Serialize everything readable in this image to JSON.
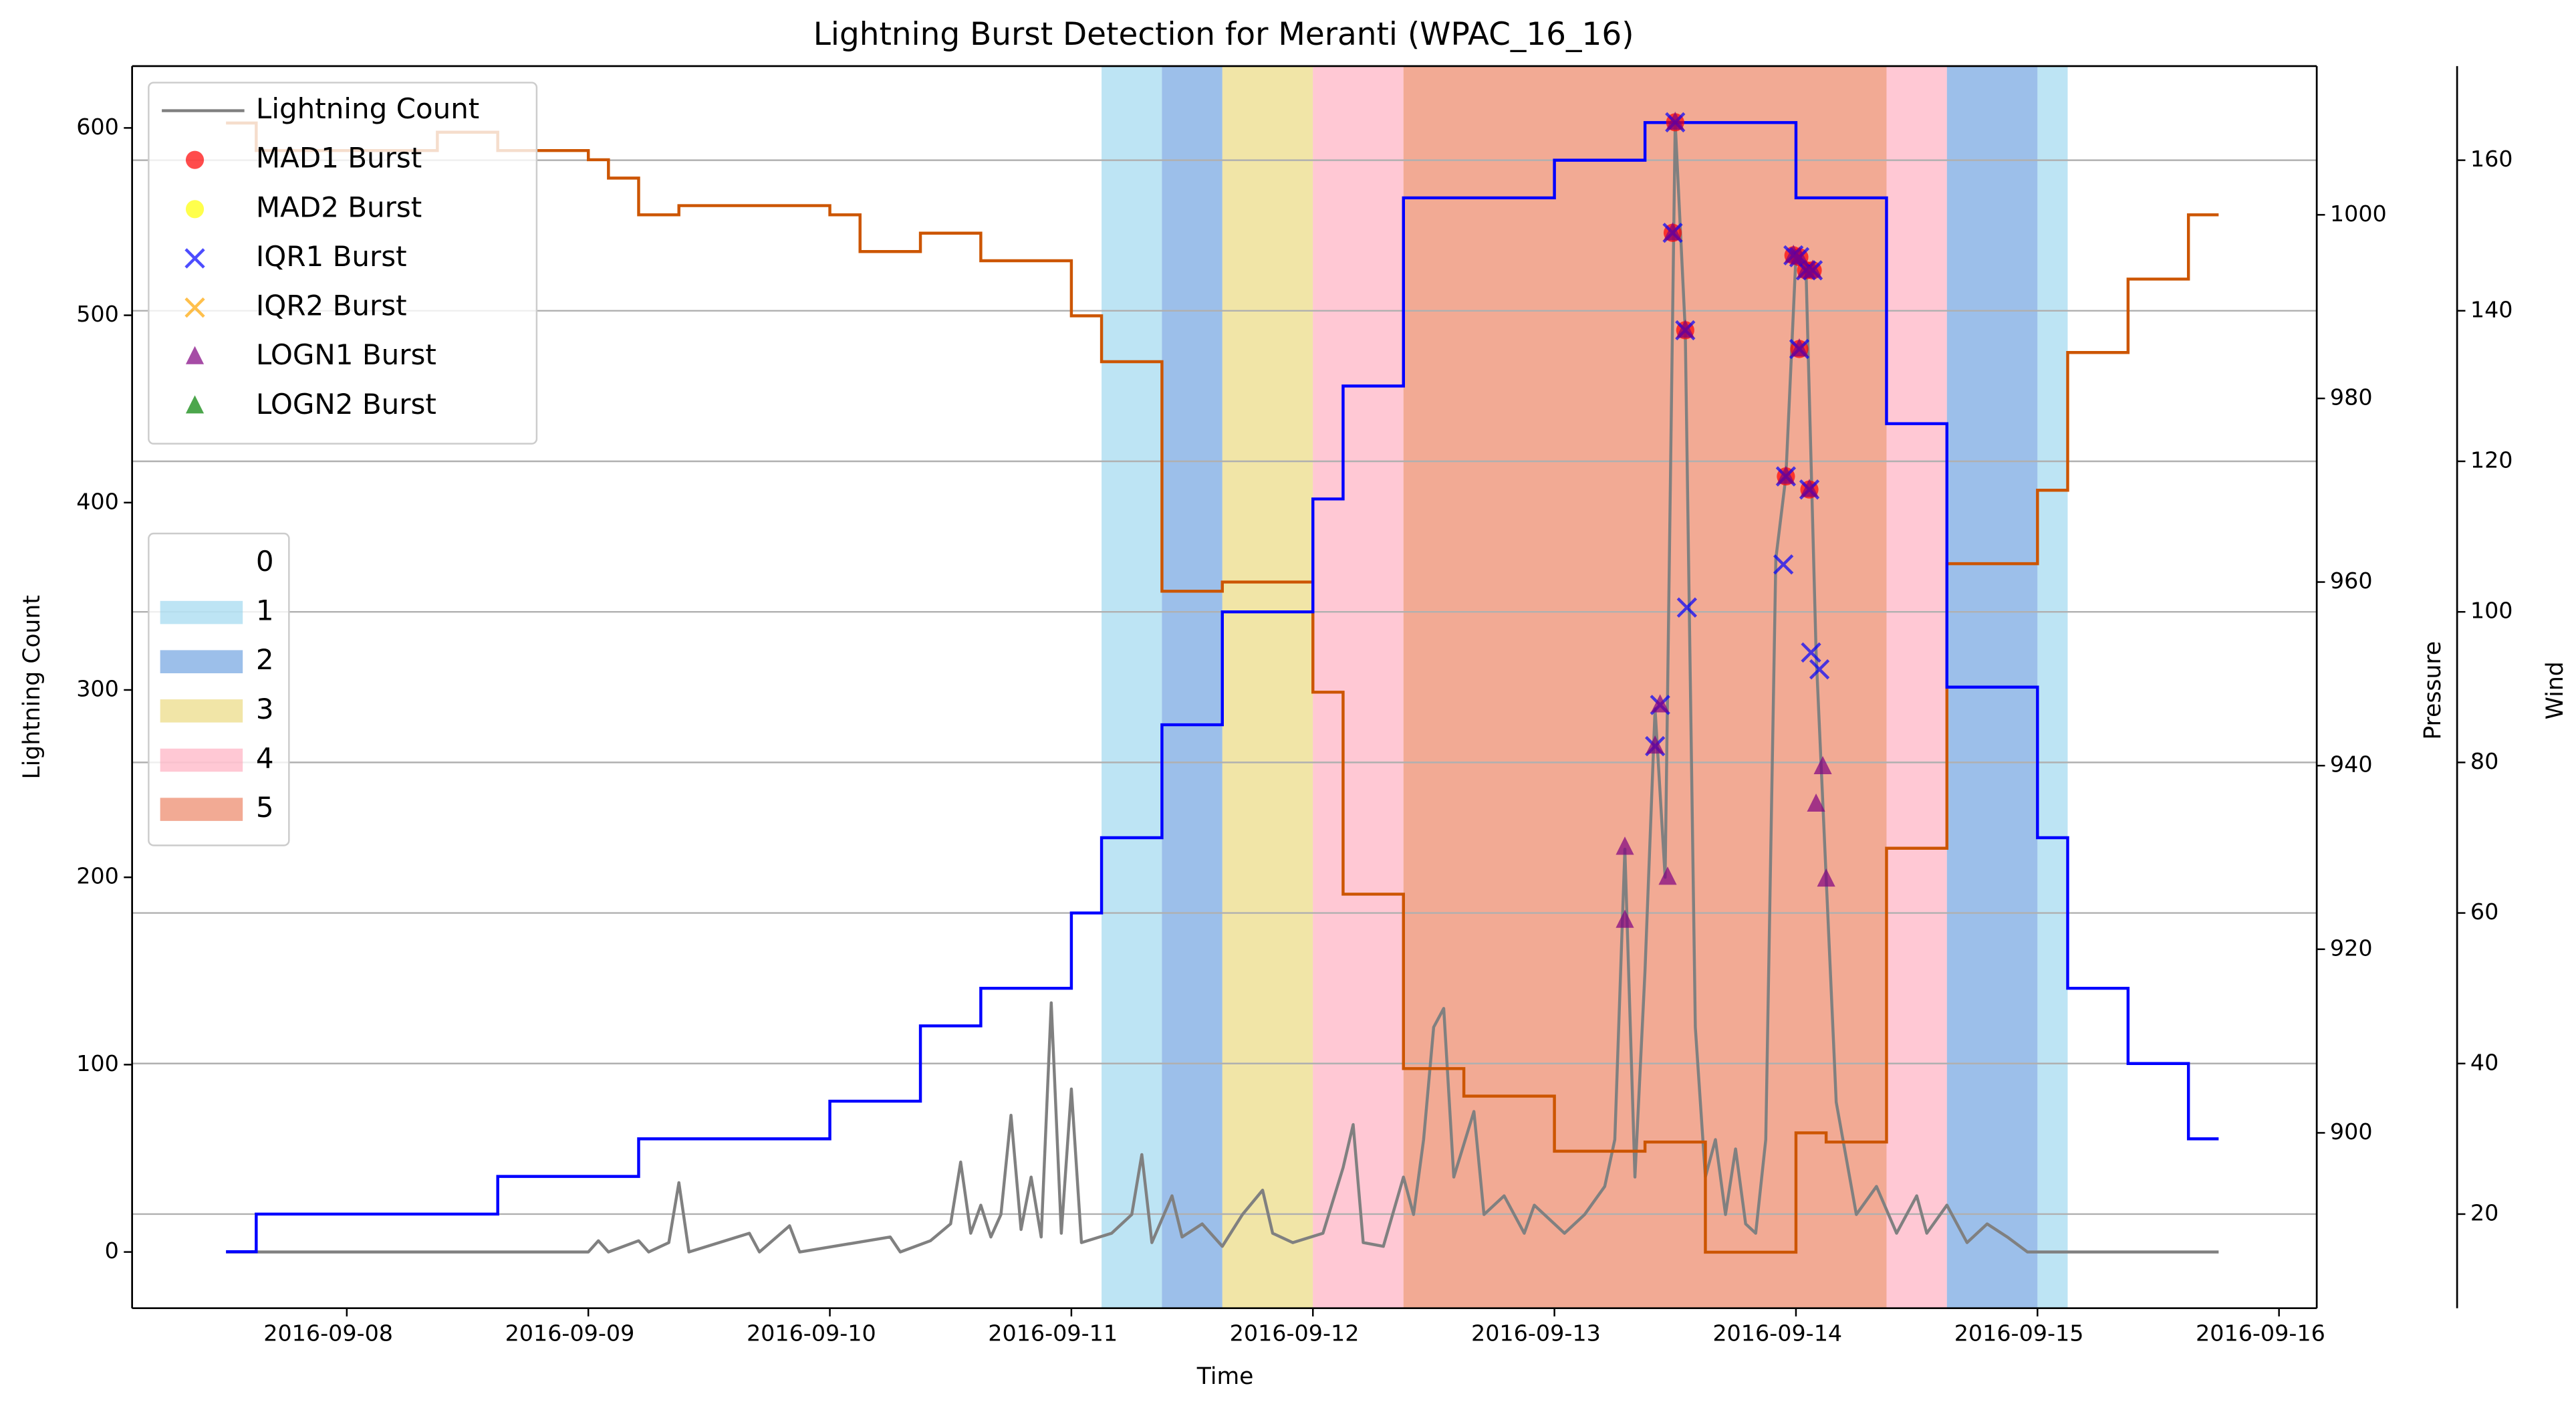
{
  "chart_data": {
    "type": "line",
    "title": "Lightning Burst Detection for Meranti (WPAC_16_16)",
    "xlabel": "Time",
    "ylabel": "Lightning Count",
    "y2label": "Pressure",
    "y3label": "Wind",
    "xlim": [
      "2016-09-07 02:40",
      "2016-09-16 03:45"
    ],
    "xticks": [
      "2016-09-08",
      "2016-09-09",
      "2016-09-10",
      "2016-09-11",
      "2016-09-12",
      "2016-09-13",
      "2016-09-14",
      "2016-09-15",
      "2016-09-16"
    ],
    "ylim": [
      -30,
      633
    ],
    "yticks": [
      0,
      100,
      200,
      300,
      400,
      500,
      600
    ],
    "y2lim": [
      880.9,
      1016.2
    ],
    "y2ticks": [
      900,
      920,
      940,
      960,
      980,
      1000
    ],
    "y3lim": [
      7.5,
      172.5
    ],
    "y3ticks": [
      20,
      40,
      60,
      80,
      100,
      120,
      140,
      160
    ],
    "ycolor": "#808080",
    "y2color": "#CC5500",
    "y3color": "#00008B",
    "grid": "y3",
    "legend": "upper left",
    "bands": [
      {
        "category": 1,
        "start": "2016-09-11 03:00",
        "end": "2016-09-11 09:00"
      },
      {
        "category": 2,
        "start": "2016-09-11 09:00",
        "end": "2016-09-11 15:00"
      },
      {
        "category": 3,
        "start": "2016-09-11 15:00",
        "end": "2016-09-12 00:00"
      },
      {
        "category": 4,
        "start": "2016-09-12 00:00",
        "end": "2016-09-12 09:00"
      },
      {
        "category": 5,
        "start": "2016-09-12 09:00",
        "end": "2016-09-14 09:00"
      },
      {
        "category": 4,
        "start": "2016-09-14 09:00",
        "end": "2016-09-14 15:00"
      },
      {
        "category": 2,
        "start": "2016-09-14 15:00",
        "end": "2016-09-15 00:00"
      },
      {
        "category": 1,
        "start": "2016-09-15 00:00",
        "end": "2016-09-15 03:00"
      }
    ],
    "band_legend": {
      "labels": [
        0,
        1,
        2,
        3,
        4,
        5
      ],
      "colors": [
        null,
        "#87CEEB",
        "#4A8AD8",
        "#E6CF5E",
        "#FF9AB0",
        "#E8643C"
      ]
    },
    "series": [
      {
        "name": "Lightning Count",
        "type": "line",
        "color": "#808080",
        "axis": "y",
        "x": [
          "2016-09-07 12:00",
          "2016-09-09 00:00",
          "2016-09-09 01:00",
          "2016-09-09 02:00",
          "2016-09-09 05:00",
          "2016-09-09 06:00",
          "2016-09-09 08:00",
          "2016-09-09 09:00",
          "2016-09-09 10:00",
          "2016-09-09 16:00",
          "2016-09-09 17:00",
          "2016-09-09 20:00",
          "2016-09-09 21:00",
          "2016-09-10 06:00",
          "2016-09-10 07:00",
          "2016-09-10 10:00",
          "2016-09-10 12:00",
          "2016-09-10 13:00",
          "2016-09-10 14:00",
          "2016-09-10 15:00",
          "2016-09-10 16:00",
          "2016-09-10 17:00",
          "2016-09-10 18:00",
          "2016-09-10 19:00",
          "2016-09-10 20:00",
          "2016-09-10 21:00",
          "2016-09-10 22:00",
          "2016-09-10 23:00",
          "2016-09-11 00:00",
          "2016-09-11 01:00",
          "2016-09-11 04:00",
          "2016-09-11 06:00",
          "2016-09-11 07:00",
          "2016-09-11 08:00",
          "2016-09-11 10:00",
          "2016-09-11 11:00",
          "2016-09-11 13:00",
          "2016-09-11 15:00",
          "2016-09-11 17:00",
          "2016-09-11 19:00",
          "2016-09-11 20:00",
          "2016-09-11 22:00",
          "2016-09-12 01:00",
          "2016-09-12 03:00",
          "2016-09-12 04:00",
          "2016-09-12 05:00",
          "2016-09-12 07:00",
          "2016-09-12 09:00",
          "2016-09-12 10:00",
          "2016-09-12 11:00",
          "2016-09-12 12:00",
          "2016-09-12 13:00",
          "2016-09-12 14:00",
          "2016-09-12 16:00",
          "2016-09-12 17:00",
          "2016-09-12 19:00",
          "2016-09-12 21:00",
          "2016-09-12 22:00",
          "2016-09-13 01:00",
          "2016-09-13 03:00",
          "2016-09-13 05:00",
          "2016-09-13 06:00",
          "2016-09-13 07:00",
          "2016-09-13 08:00",
          "2016-09-13 09:00",
          "2016-09-13 10:00",
          "2016-09-13 11:00",
          "2016-09-13 12:00",
          "2016-09-13 13:00",
          "2016-09-13 14:00",
          "2016-09-13 15:00",
          "2016-09-13 16:00",
          "2016-09-13 17:00",
          "2016-09-13 18:00",
          "2016-09-13 19:00",
          "2016-09-13 20:00",
          "2016-09-13 21:00",
          "2016-09-13 22:00",
          "2016-09-13 23:00",
          "2016-09-14 00:00",
          "2016-09-14 01:00",
          "2016-09-14 02:00",
          "2016-09-14 03:00",
          "2016-09-14 04:00",
          "2016-09-14 05:00",
          "2016-09-14 06:00",
          "2016-09-14 08:00",
          "2016-09-14 10:00",
          "2016-09-14 12:00",
          "2016-09-14 13:00",
          "2016-09-14 15:00",
          "2016-09-14 17:00",
          "2016-09-14 19:00",
          "2016-09-14 21:00",
          "2016-09-14 23:00",
          "2016-09-15 18:00"
        ],
        "values": [
          0,
          0,
          6,
          0,
          6,
          0,
          5,
          37,
          0,
          10,
          0,
          14,
          0,
          8,
          0,
          6,
          15,
          48,
          10,
          25,
          8,
          20,
          73,
          12,
          40,
          8,
          133,
          10,
          87,
          5,
          10,
          20,
          52,
          5,
          30,
          8,
          15,
          3,
          20,
          33,
          10,
          5,
          10,
          45,
          68,
          5,
          3,
          40,
          20,
          60,
          120,
          130,
          40,
          75,
          20,
          30,
          10,
          25,
          10,
          20,
          35,
          60,
          215,
          40,
          150,
          290,
          200,
          603,
          492,
          120,
          40,
          60,
          20,
          55,
          15,
          10,
          60,
          370,
          414,
          532,
          524,
          320,
          200,
          80,
          50,
          20,
          35,
          10,
          30,
          10,
          25,
          5,
          15,
          8,
          0,
          0
        ]
      },
      {
        "type": "step",
        "color": "#CC5500",
        "axis": "y2",
        "x": [
          "2016-09-07 12:00",
          "2016-09-07 15:00",
          "2016-09-08 09:00",
          "2016-09-08 15:00",
          "2016-09-09 00:00",
          "2016-09-09 02:00",
          "2016-09-09 05:00",
          "2016-09-09 09:00",
          "2016-09-10 00:00",
          "2016-09-10 03:00",
          "2016-09-10 09:00",
          "2016-09-10 15:00",
          "2016-09-11 00:00",
          "2016-09-11 03:00",
          "2016-09-11 09:00",
          "2016-09-11 15:00",
          "2016-09-12 00:00",
          "2016-09-12 03:00",
          "2016-09-12 09:00",
          "2016-09-12 15:00",
          "2016-09-13 00:00",
          "2016-09-13 09:00",
          "2016-09-13 15:00",
          "2016-09-14 00:00",
          "2016-09-14 03:00",
          "2016-09-14 09:00",
          "2016-09-14 15:00",
          "2016-09-15 00:00",
          "2016-09-15 03:00",
          "2016-09-15 09:00",
          "2016-09-15 15:00",
          "2016-09-15 18:00"
        ],
        "values": [
          1010,
          1007,
          1009,
          1007,
          1006,
          1004,
          1000,
          1001,
          1000,
          996,
          998,
          995,
          989,
          984,
          959,
          960,
          948,
          926,
          907,
          904,
          898,
          899,
          887,
          900,
          899,
          931,
          962,
          970,
          985,
          993,
          1000,
          1000
        ]
      },
      {
        "type": "step",
        "color": "#0000FF",
        "axis": "y3",
        "x": [
          "2016-09-07 12:00",
          "2016-09-07 15:00",
          "2016-09-08 15:00",
          "2016-09-09 05:00",
          "2016-09-10 00:00",
          "2016-09-10 09:00",
          "2016-09-10 15:00",
          "2016-09-11 00:00",
          "2016-09-11 03:00",
          "2016-09-11 09:00",
          "2016-09-11 15:00",
          "2016-09-12 00:00",
          "2016-09-12 03:00",
          "2016-09-12 09:00",
          "2016-09-13 00:00",
          "2016-09-13 09:00",
          "2016-09-14 00:00",
          "2016-09-14 09:00",
          "2016-09-14 15:00",
          "2016-09-15 00:00",
          "2016-09-15 03:00",
          "2016-09-15 09:00",
          "2016-09-15 15:00",
          "2016-09-15 18:00"
        ],
        "values": [
          15,
          20,
          25,
          30,
          35,
          45,
          50,
          60,
          70,
          85,
          100,
          115,
          130,
          155,
          160,
          165,
          155,
          125,
          90,
          70,
          50,
          40,
          30,
          30
        ]
      },
      {
        "name": "MAD1 Burst",
        "type": "scatter",
        "marker": "o",
        "color": "#FF0000",
        "axis": "y",
        "x": [
          "2016-09-13 11:45",
          "2016-09-13 12:00",
          "2016-09-13 13:00",
          "2016-09-13 23:00",
          "2016-09-13 23:45",
          "2016-09-14 00:20",
          "2016-09-14 00:20",
          "2016-09-14 01:00",
          "2016-09-14 01:20",
          "2016-09-14 01:40"
        ],
        "values": [
          544,
          603,
          492,
          414,
          532,
          531,
          482,
          524,
          407,
          524
        ]
      },
      {
        "name": "MAD2 Burst",
        "type": "scatter",
        "marker": "o",
        "color": "#FFFF00",
        "axis": "y",
        "x": [],
        "values": []
      },
      {
        "name": "IQR1 Burst",
        "type": "scatter",
        "marker": "x",
        "color": "#0000FF",
        "axis": "y",
        "x": [
          "2016-09-13 10:00",
          "2016-09-13 10:30",
          "2016-09-13 11:45",
          "2016-09-13 12:00",
          "2016-09-13 13:00",
          "2016-09-13 13:10",
          "2016-09-13 22:45",
          "2016-09-13 23:00",
          "2016-09-13 23:45",
          "2016-09-14 00:20",
          "2016-09-14 00:20",
          "2016-09-14 01:00",
          "2016-09-14 01:20",
          "2016-09-14 01:30",
          "2016-09-14 01:40",
          "2016-09-14 02:20"
        ],
        "values": [
          270,
          292,
          544,
          603,
          492,
          344,
          367,
          414,
          532,
          531,
          482,
          524,
          407,
          320,
          524,
          311
        ]
      },
      {
        "name": "IQR2 Burst",
        "type": "scatter",
        "marker": "x",
        "color": "#FFA500",
        "axis": "y",
        "x": [],
        "values": []
      },
      {
        "name": "LOGN1 Burst",
        "type": "scatter",
        "marker": "^",
        "color": "#800080",
        "axis": "y",
        "x": [
          "2016-09-13 07:00",
          "2016-09-13 07:00",
          "2016-09-13 10:00",
          "2016-09-13 10:30",
          "2016-09-13 11:15",
          "2016-09-13 11:45",
          "2016-09-13 12:00",
          "2016-09-13 13:00",
          "2016-09-13 23:00",
          "2016-09-13 23:45",
          "2016-09-14 00:20",
          "2016-09-14 00:20",
          "2016-09-14 01:00",
          "2016-09-14 01:20",
          "2016-09-14 01:40",
          "2016-09-14 02:00",
          "2016-09-14 02:40",
          "2016-09-14 03:00"
        ],
        "values": [
          216,
          177,
          270,
          292,
          200,
          544,
          603,
          492,
          414,
          532,
          531,
          482,
          524,
          407,
          524,
          239,
          259,
          199
        ]
      },
      {
        "name": "LOGN2 Burst",
        "type": "scatter",
        "marker": "^",
        "color": "#008000",
        "axis": "y",
        "x": [],
        "values": []
      }
    ]
  }
}
